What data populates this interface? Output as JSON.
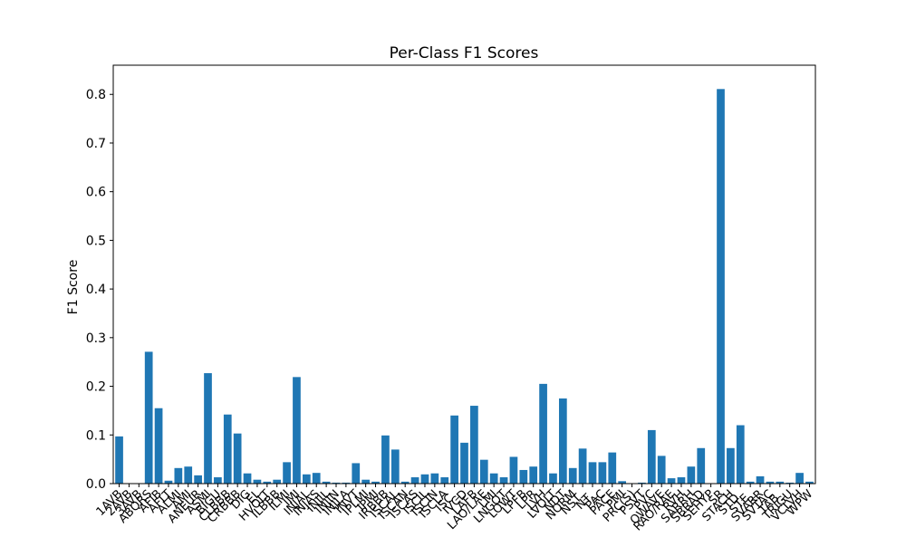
{
  "chart_data": {
    "type": "bar",
    "title": "Per-Class F1 Scores",
    "xlabel": "",
    "ylabel": "F1 Score",
    "ylim": [
      0,
      0.86
    ],
    "yticks": [
      0.0,
      0.1,
      0.2,
      0.3,
      0.4,
      0.5,
      0.6,
      0.7,
      0.8
    ],
    "ytick_labels": [
      "0.0",
      "0.1",
      "0.2",
      "0.3",
      "0.4",
      "0.5",
      "0.6",
      "0.7",
      "0.8"
    ],
    "grid": false,
    "bar_color": "#1f77b4",
    "categories": [
      "1AVB",
      "2AVB",
      "3AVB",
      "ABQRS",
      "AFIB",
      "AFLT",
      "ALMI",
      "AMI",
      "ANEUR",
      "ASMI",
      "BIGU",
      "CLBBB",
      "CRBBB",
      "DIG",
      "EL",
      "HVOLT",
      "ILBBB",
      "ILMI",
      "IMI",
      "INJAL",
      "INJAS",
      "INJIL",
      "INJIN",
      "INJLA",
      "INVT",
      "IPLMI",
      "IPMI",
      "IRBBB",
      "ISCAL",
      "ISCAN",
      "ISCAS",
      "ISCIL",
      "ISCIN",
      "ISCLA",
      "ISC_",
      "IVCD",
      "LAFB",
      "LAO/LAE",
      "LMI",
      "LNGQT",
      "LOWT",
      "LPFB",
      "LPR",
      "LVH",
      "LVOLT",
      "NDT",
      "NORM",
      "NST_",
      "NT_",
      "PAC",
      "PACE",
      "PMI",
      "PRC(S)",
      "PSVT",
      "PVC",
      "QWAVE",
      "RAO/RAE",
      "RVH",
      "SARRH",
      "SBRAD",
      "SEHYP",
      "SR",
      "STACH",
      "STD_",
      "STE_",
      "SVARR",
      "SVTAC",
      "TAB_",
      "TRIGU",
      "VCLVH",
      "WPW"
    ],
    "values": [
      0.097,
      0.0,
      0.0,
      0.271,
      0.155,
      0.006,
      0.032,
      0.035,
      0.017,
      0.227,
      0.013,
      0.142,
      0.103,
      0.021,
      0.008,
      0.004,
      0.008,
      0.044,
      0.219,
      0.019,
      0.022,
      0.004,
      0.002,
      0.002,
      0.042,
      0.008,
      0.004,
      0.099,
      0.07,
      0.004,
      0.013,
      0.019,
      0.021,
      0.013,
      0.14,
      0.084,
      0.16,
      0.049,
      0.021,
      0.013,
      0.055,
      0.028,
      0.035,
      0.205,
      0.021,
      0.175,
      0.032,
      0.072,
      0.044,
      0.044,
      0.064,
      0.005,
      0.0,
      0.002,
      0.11,
      0.057,
      0.011,
      0.013,
      0.035,
      0.073,
      0.0,
      0.811,
      0.073,
      0.12,
      0.004,
      0.015,
      0.004,
      0.004,
      0.002,
      0.022,
      0.004
    ]
  }
}
